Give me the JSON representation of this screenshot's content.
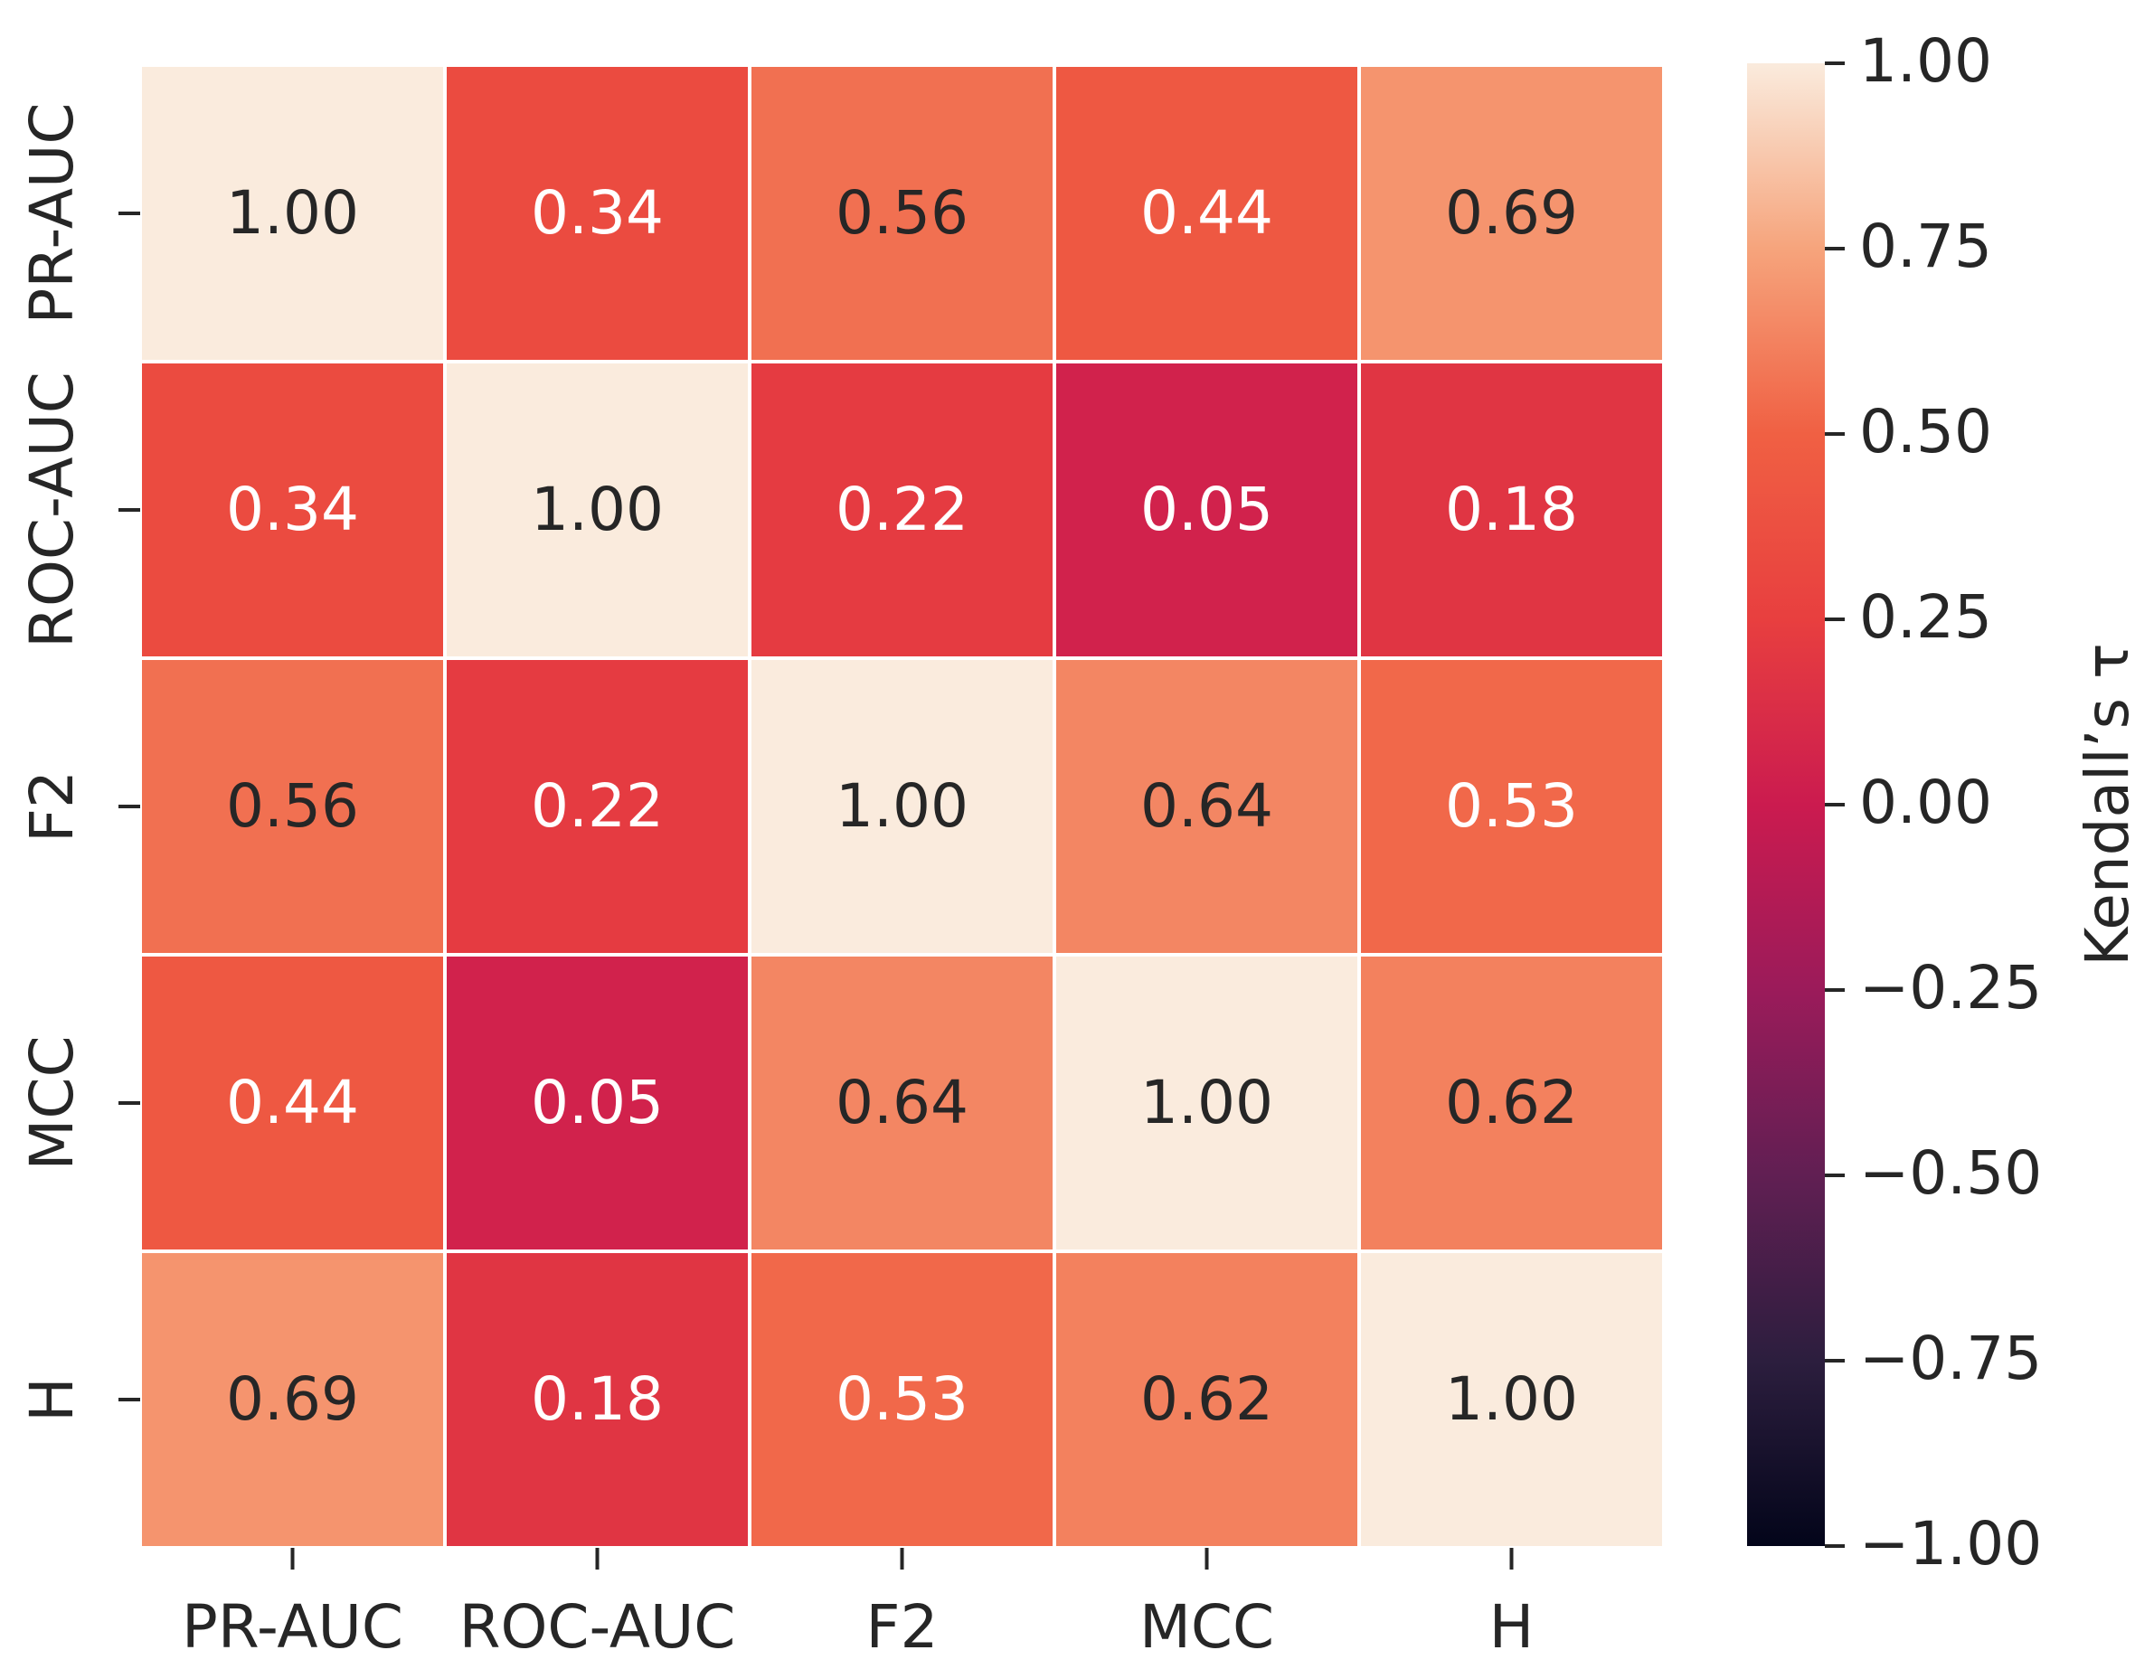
{
  "chart_data": {
    "type": "heatmap",
    "rows": [
      "PR-AUC",
      "ROC-AUC",
      "F2",
      "MCC",
      "H"
    ],
    "columns": [
      "PR-AUC",
      "ROC-AUC",
      "F2",
      "MCC",
      "H"
    ],
    "values": [
      [
        1.0,
        0.34,
        0.56,
        0.44,
        0.69
      ],
      [
        0.34,
        1.0,
        0.22,
        0.05,
        0.18
      ],
      [
        0.56,
        0.22,
        1.0,
        0.64,
        0.53
      ],
      [
        0.44,
        0.05,
        0.64,
        1.0,
        0.62
      ],
      [
        0.69,
        0.18,
        0.53,
        0.62,
        1.0
      ]
    ],
    "value_labels": [
      [
        "1.00",
        "0.34",
        "0.56",
        "0.44",
        "0.69"
      ],
      [
        "0.34",
        "1.00",
        "0.22",
        "0.05",
        "0.18"
      ],
      [
        "0.56",
        "0.22",
        "1.00",
        "0.64",
        "0.53"
      ],
      [
        "0.44",
        "0.05",
        "0.64",
        "1.00",
        "0.62"
      ],
      [
        "0.69",
        "0.18",
        "0.53",
        "0.62",
        "1.00"
      ]
    ],
    "label_colors": [
      [
        "dark",
        "light",
        "dark",
        "light",
        "dark"
      ],
      [
        "light",
        "dark",
        "light",
        "light",
        "light"
      ],
      [
        "dark",
        "light",
        "dark",
        "dark",
        "light"
      ],
      [
        "light",
        "light",
        "dark",
        "dark",
        "dark"
      ],
      [
        "dark",
        "light",
        "light",
        "dark",
        "dark"
      ]
    ],
    "colorbar": {
      "label": "Kendall’s τ",
      "vmin": -1.0,
      "vmax": 1.0,
      "ticks": [
        1.0,
        0.75,
        0.5,
        0.25,
        0.0,
        -0.25,
        -0.5,
        -0.75,
        -1.0
      ],
      "tick_labels": [
        "1.00",
        "0.75",
        "0.50",
        "0.25",
        "0.00",
        "−0.25",
        "−0.50",
        "−0.75",
        "−1.00"
      ],
      "colormap": "rocket",
      "position": "right"
    },
    "colors": {
      "text_dark": "#262626",
      "text_light": "#ffffff",
      "cell_border": "#ffffff",
      "axis": "#262626"
    }
  }
}
